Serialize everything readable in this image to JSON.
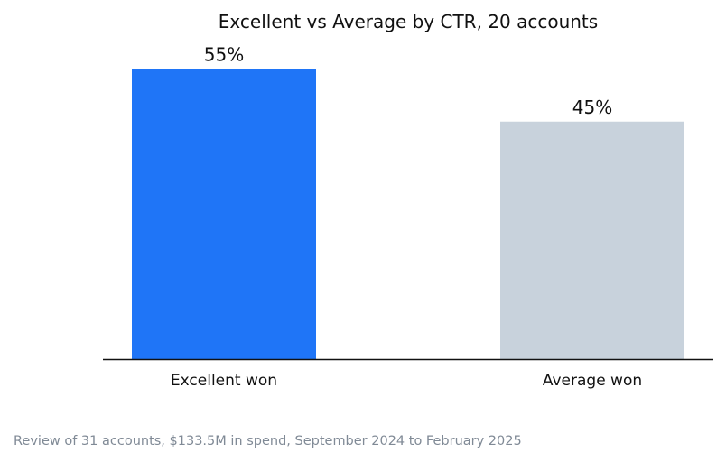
{
  "chart_data": {
    "type": "bar",
    "title": "Excellent vs Average by CTR, 20 accounts",
    "categories": [
      "Excellent won",
      "Average won"
    ],
    "values": [
      55,
      45
    ],
    "value_labels": [
      "55%",
      "45%"
    ],
    "colors": [
      "#1f75f7",
      "#c8d2dc"
    ],
    "ylim": [
      0,
      60
    ],
    "xlabel": "",
    "ylabel": "",
    "grid": false,
    "legend": "none"
  },
  "footnote": "Review of 31 accounts, $133.5M in spend, September 2024 to February 2025"
}
